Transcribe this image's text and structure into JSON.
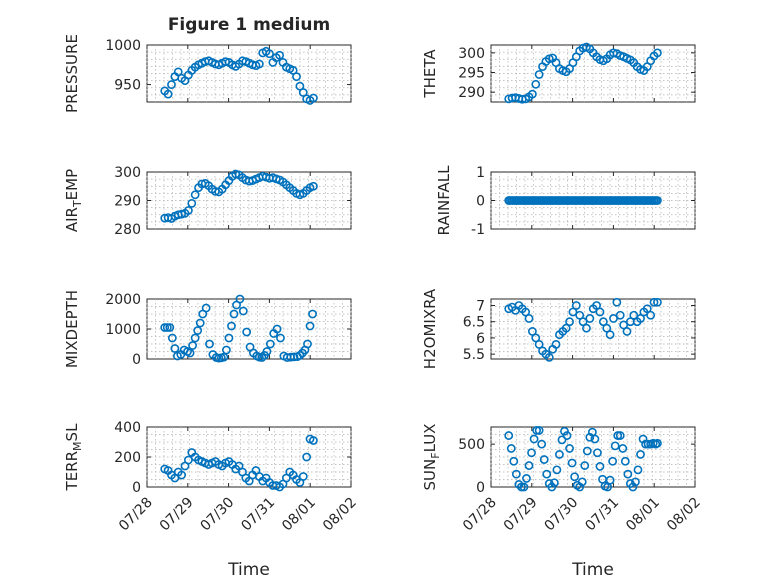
{
  "figure": {
    "title": "Figure 1 medium"
  },
  "chart_data": [
    {
      "type": "scatter",
      "ylabel": "PRESSURE",
      "xlabel": "",
      "xlim": [
        0,
        4.83
      ],
      "ylim": [
        928,
        1000
      ],
      "yticks": [
        950,
        1000
      ],
      "xticks": [],
      "grid": true,
      "marker": "circle",
      "color": "#0072bd",
      "series": [
        {
          "x": [
            0.42,
            0.5,
            0.58,
            0.66,
            0.74,
            0.82,
            0.9,
            0.98,
            1.06,
            1.14,
            1.22,
            1.3,
            1.38,
            1.46,
            1.54,
            1.62,
            1.7,
            1.78,
            1.86,
            1.94,
            2.02,
            2.1,
            2.18,
            2.26,
            2.34,
            2.42,
            2.5,
            2.58,
            2.66,
            2.74,
            2.82,
            2.9,
            2.98,
            3.06,
            3.14,
            3.22,
            3.3,
            3.38,
            3.46,
            3.54,
            3.62,
            3.7,
            3.78,
            3.86,
            3.94
          ],
          "y": [
            942,
            938,
            950,
            960,
            966,
            958,
            955,
            962,
            968,
            972,
            975,
            977,
            979,
            980,
            978,
            976,
            975,
            977,
            979,
            978,
            975,
            973,
            976,
            980,
            979,
            977,
            975,
            974,
            976,
            990,
            992,
            989,
            978,
            984,
            987,
            978,
            972,
            970,
            968,
            960,
            948,
            940,
            932,
            930,
            933
          ]
        }
      ]
    },
    {
      "type": "scatter",
      "ylabel": "THETA",
      "xlabel": "",
      "xlim": [
        0,
        4.83
      ],
      "ylim": [
        287.5,
        302
      ],
      "yticks": [
        290,
        295,
        300
      ],
      "xticks": [],
      "grid": true,
      "marker": "circle",
      "color": "#0072bd",
      "series": [
        {
          "x": [
            0.42,
            0.5,
            0.58,
            0.66,
            0.74,
            0.82,
            0.9,
            0.98,
            1.06,
            1.14,
            1.22,
            1.3,
            1.38,
            1.46,
            1.54,
            1.62,
            1.7,
            1.78,
            1.86,
            1.94,
            2.02,
            2.1,
            2.18,
            2.26,
            2.34,
            2.42,
            2.5,
            2.58,
            2.66,
            2.74,
            2.82,
            2.9,
            2.98,
            3.06,
            3.14,
            3.22,
            3.3,
            3.38,
            3.46,
            3.54,
            3.62,
            3.7,
            3.78,
            3.86,
            3.94
          ],
          "y": [
            288.3,
            288.5,
            288.6,
            288.4,
            288.2,
            288.3,
            288.8,
            289.5,
            292,
            294.5,
            296.5,
            297.8,
            298.5,
            298.7,
            297.5,
            296,
            295.5,
            295.2,
            296,
            297.5,
            299,
            300.5,
            301.2,
            301.5,
            301,
            300,
            299,
            298.3,
            298,
            298.5,
            299.5,
            300,
            299.8,
            299.3,
            299,
            298.6,
            298.2,
            297.5,
            296.5,
            295.8,
            295.5,
            296.5,
            298,
            299.2,
            300
          ]
        }
      ]
    },
    {
      "type": "scatter",
      "ylabel": "AIR_TEMP",
      "xlabel": "",
      "xlim": [
        0,
        4.83
      ],
      "ylim": [
        280,
        300
      ],
      "yticks": [
        280,
        290,
        300
      ],
      "xticks": [],
      "grid": true,
      "marker": "circle",
      "color": "#0072bd",
      "series": [
        {
          "x": [
            0.42,
            0.5,
            0.58,
            0.66,
            0.74,
            0.82,
            0.9,
            0.98,
            1.06,
            1.14,
            1.22,
            1.3,
            1.38,
            1.46,
            1.54,
            1.62,
            1.7,
            1.78,
            1.86,
            1.94,
            2.02,
            2.1,
            2.18,
            2.26,
            2.34,
            2.42,
            2.5,
            2.58,
            2.66,
            2.74,
            2.82,
            2.9,
            2.98,
            3.06,
            3.14,
            3.22,
            3.3,
            3.38,
            3.46,
            3.54,
            3.62,
            3.7,
            3.78,
            3.86,
            3.94
          ],
          "y": [
            283.8,
            284,
            283.7,
            284.5,
            285,
            285.2,
            285.5,
            286.5,
            289,
            292,
            294.5,
            295.8,
            296,
            295.2,
            294,
            293.2,
            293,
            294,
            295.5,
            297,
            298.5,
            299.3,
            299,
            298,
            297.2,
            296.8,
            297,
            297.5,
            298,
            298.5,
            298.2,
            297.8,
            298,
            297.6,
            297.2,
            296.5,
            295.5,
            294.5,
            293.5,
            292.5,
            292,
            292.5,
            293.5,
            294.5,
            295
          ]
        }
      ]
    },
    {
      "type": "scatter",
      "ylabel": "RAINFALL",
      "xlabel": "",
      "xlim": [
        0,
        4.83
      ],
      "ylim": [
        -1,
        1
      ],
      "yticks": [
        -1,
        0,
        1
      ],
      "xticks": [],
      "grid": true,
      "marker": "circle",
      "color": "#0072bd",
      "series": [
        {
          "x_range": [
            0.42,
            3.94
          ],
          "count": 90,
          "y_constant": 0
        }
      ]
    },
    {
      "type": "scatter",
      "ylabel": "MIXDEPTH",
      "xlabel": "",
      "xlim": [
        0,
        4.83
      ],
      "ylim": [
        0,
        2000
      ],
      "yticks": [
        0,
        1000,
        2000
      ],
      "xticks": [],
      "grid": true,
      "marker": "circle",
      "color": "#0072bd",
      "series": [
        {
          "x": [
            0.42,
            0.48,
            0.54,
            0.6,
            0.66,
            0.72,
            0.8,
            0.88,
            0.96,
            1.02,
            1.08,
            1.14,
            1.2,
            1.26,
            1.32,
            1.4,
            1.48,
            1.56,
            1.64,
            1.7,
            1.76,
            1.82,
            1.88,
            1.94,
            2.0,
            2.06,
            2.12,
            2.2,
            2.28,
            2.36,
            2.44,
            2.52,
            2.6,
            2.66,
            2.72,
            2.78,
            2.84,
            2.92,
            3.0,
            3.08,
            3.16,
            3.24,
            3.32,
            3.4,
            3.48,
            3.56,
            3.62,
            3.68,
            3.74,
            3.8,
            3.86,
            3.92
          ],
          "y": [
            1050,
            1050,
            1050,
            700,
            350,
            100,
            150,
            300,
            250,
            200,
            450,
            700,
            950,
            1200,
            1500,
            1700,
            500,
            150,
            50,
            30,
            40,
            60,
            300,
            700,
            1100,
            1500,
            1800,
            2000,
            1600,
            900,
            400,
            200,
            100,
            60,
            50,
            120,
            250,
            500,
            850,
            1000,
            700,
            100,
            50,
            60,
            70,
            80,
            120,
            200,
            300,
            500,
            1100,
            1500
          ]
        }
      ]
    },
    {
      "type": "scatter",
      "ylabel": "H2OMIXRA",
      "xlabel": "",
      "xlim": [
        0,
        4.83
      ],
      "ylim": [
        5.35,
        7.2
      ],
      "yticks": [
        5.5,
        6,
        6.5,
        7
      ],
      "xticks": [],
      "grid": true,
      "marker": "circle",
      "color": "#0072bd",
      "series": [
        {
          "x": [
            0.42,
            0.5,
            0.58,
            0.66,
            0.74,
            0.82,
            0.9,
            0.98,
            1.06,
            1.14,
            1.22,
            1.3,
            1.38,
            1.46,
            1.54,
            1.62,
            1.7,
            1.78,
            1.86,
            1.94,
            2.02,
            2.1,
            2.18,
            2.26,
            2.34,
            2.42,
            2.5,
            2.58,
            2.66,
            2.74,
            2.82,
            2.9,
            2.98,
            3.06,
            3.14,
            3.22,
            3.3,
            3.38,
            3.46,
            3.54,
            3.62,
            3.7,
            3.78,
            3.86,
            3.94
          ],
          "y": [
            6.9,
            6.95,
            6.85,
            7.0,
            6.9,
            6.8,
            6.6,
            6.2,
            6.0,
            5.8,
            5.6,
            5.5,
            5.4,
            5.65,
            5.8,
            6.1,
            6.2,
            6.3,
            6.5,
            6.8,
            7.0,
            6.7,
            6.5,
            6.3,
            6.6,
            6.9,
            7.0,
            6.8,
            6.5,
            6.3,
            6.1,
            6.6,
            7.1,
            6.7,
            6.4,
            6.2,
            6.5,
            6.7,
            6.5,
            6.6,
            6.8,
            6.9,
            6.7,
            7.1,
            7.1
          ]
        }
      ]
    },
    {
      "type": "scatter",
      "ylabel": "TERR_MSL",
      "xlabel": "Time",
      "xlim": [
        0,
        4.83
      ],
      "ylim": [
        0,
        400
      ],
      "yticks": [
        0,
        200,
        400
      ],
      "xticks": [
        "07/28",
        "07/29",
        "07/30",
        "07/31",
        "08/01",
        "08/02"
      ],
      "grid": true,
      "marker": "circle",
      "color": "#0072bd",
      "series": [
        {
          "x": [
            0.42,
            0.5,
            0.58,
            0.66,
            0.74,
            0.82,
            0.9,
            0.98,
            1.06,
            1.14,
            1.22,
            1.3,
            1.38,
            1.46,
            1.54,
            1.62,
            1.7,
            1.78,
            1.86,
            1.94,
            2.02,
            2.1,
            2.18,
            2.26,
            2.34,
            2.42,
            2.5,
            2.58,
            2.66,
            2.74,
            2.82,
            2.9,
            2.98,
            3.06,
            3.14,
            3.22,
            3.3,
            3.38,
            3.46,
            3.54,
            3.62,
            3.7,
            3.78,
            3.86,
            3.94
          ],
          "y": [
            120,
            110,
            80,
            60,
            100,
            80,
            140,
            180,
            230,
            200,
            180,
            170,
            160,
            150,
            160,
            170,
            150,
            140,
            160,
            170,
            150,
            120,
            140,
            100,
            60,
            40,
            80,
            110,
            70,
            40,
            60,
            30,
            10,
            10,
            0,
            20,
            60,
            100,
            80,
            50,
            30,
            70,
            200,
            320,
            310
          ]
        }
      ]
    },
    {
      "type": "scatter",
      "ylabel": "SUN_FLUX",
      "xlabel": "Time",
      "xlim": [
        0,
        4.83
      ],
      "ylim": [
        0,
        700
      ],
      "yticks": [
        0,
        500
      ],
      "xticks": [
        "07/28",
        "07/29",
        "07/30",
        "07/31",
        "08/01",
        "08/02"
      ],
      "grid": true,
      "marker": "circle",
      "color": "#0072bd",
      "series": [
        {
          "x": [
            0.42,
            0.48,
            0.54,
            0.6,
            0.66,
            0.72,
            0.78,
            0.84,
            0.9,
            0.96,
            1.02,
            1.08,
            1.14,
            1.2,
            1.26,
            1.32,
            1.38,
            1.44,
            1.5,
            1.56,
            1.62,
            1.68,
            1.74,
            1.8,
            1.86,
            1.92,
            1.98,
            2.04,
            2.1,
            2.16,
            2.22,
            2.28,
            2.34,
            2.4,
            2.46,
            2.52,
            2.58,
            2.64,
            2.7,
            2.76,
            2.82,
            2.88,
            2.94,
            3.0,
            3.06,
            3.12,
            3.18,
            3.24,
            3.3,
            3.36,
            3.42,
            3.48,
            3.54,
            3.6,
            3.66,
            3.72,
            3.78,
            3.84,
            3.9,
            3.94
          ],
          "y": [
            600,
            450,
            300,
            150,
            30,
            0,
            0,
            100,
            250,
            400,
            560,
            660,
            660,
            500,
            320,
            150,
            40,
            0,
            50,
            200,
            380,
            550,
            650,
            600,
            450,
            280,
            120,
            20,
            0,
            60,
            250,
            420,
            580,
            640,
            560,
            400,
            240,
            90,
            10,
            0,
            80,
            300,
            480,
            600,
            600,
            450,
            300,
            150,
            40,
            0,
            60,
            200,
            380,
            560,
            500,
            500,
            500,
            510,
            500,
            510
          ]
        }
      ]
    }
  ]
}
